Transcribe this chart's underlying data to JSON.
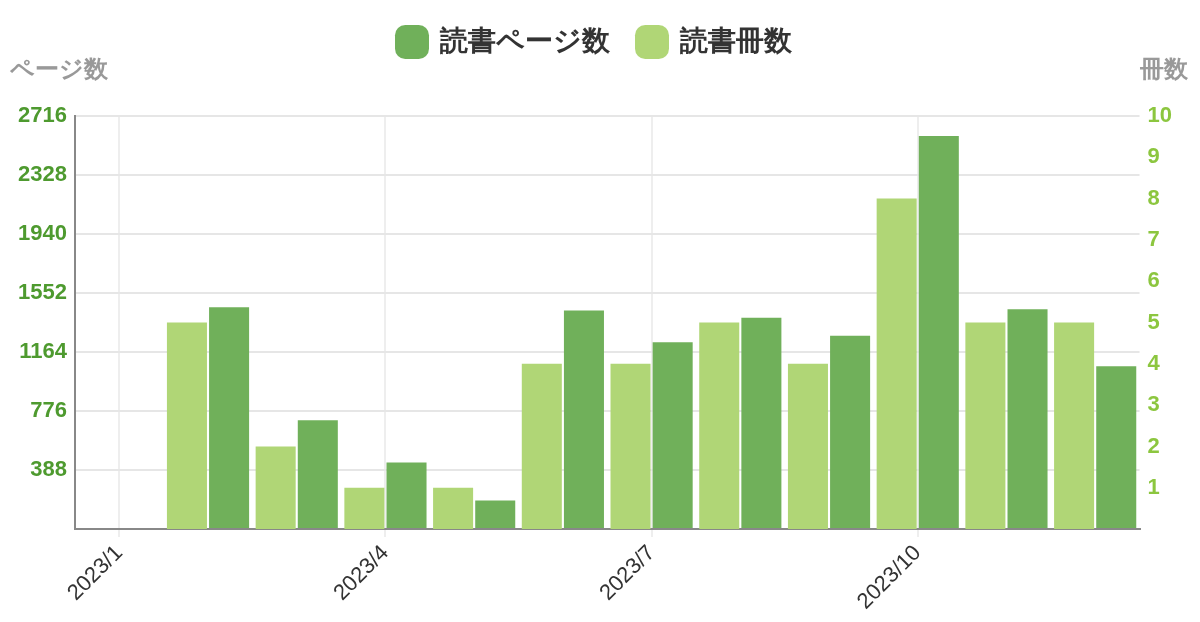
{
  "chart_data": {
    "type": "bar",
    "categories": [
      "2023/1",
      null,
      null,
      "2023/4",
      null,
      null,
      "2023/7",
      null,
      null,
      "2023/10",
      null,
      null
    ],
    "series": [
      {
        "name": "読書ページ数",
        "color": "#70b05a",
        "values": [
          0,
          1459,
          715,
          438,
          188,
          1438,
          1229,
          1389,
          1271,
          2584,
          1445,
          1070
        ]
      },
      {
        "name": "読書冊数",
        "color": "#b0d676",
        "axis": "y2",
        "values": [
          0,
          5,
          2,
          1,
          1,
          4,
          4,
          5,
          4,
          8,
          5,
          5
        ]
      }
    ],
    "ylabel": "ページ数",
    "y2label": "冊数",
    "ylim": [
      0,
      2716
    ],
    "yticks": [
      {
        "value": 0,
        "label": null
      },
      388,
      776,
      1164,
      1552,
      1940,
      2328,
      2716
    ],
    "y2lim": [
      0,
      10
    ],
    "y2ticks": [
      1,
      2,
      3,
      4,
      5,
      6,
      7,
      8,
      9,
      10
    ],
    "grid": true,
    "legend": "top"
  }
}
